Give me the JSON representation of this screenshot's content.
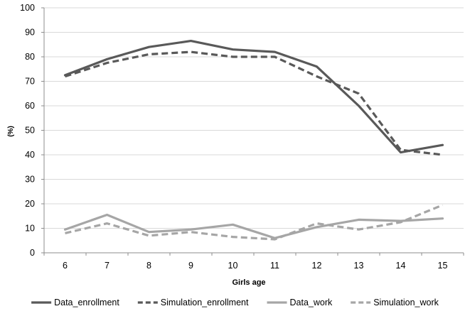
{
  "chart_data": {
    "type": "line",
    "title": "",
    "xlabel": "Girls age",
    "ylabel": "(%)",
    "categories": [
      "6",
      "7",
      "8",
      "9",
      "10",
      "11",
      "12",
      "13",
      "14",
      "15"
    ],
    "ylim": [
      0,
      100
    ],
    "yticks": [
      "0",
      "10",
      "20",
      "30",
      "40",
      "50",
      "60",
      "70",
      "80",
      "90",
      "100"
    ],
    "grid": "horizontal",
    "legend_position": "bottom",
    "series": [
      {
        "name": "Data_enrollment",
        "values": [
          72.5,
          79,
          84,
          86.5,
          83,
          82,
          76,
          60,
          41,
          44
        ],
        "color": "#595959",
        "dashed": false
      },
      {
        "name": "Simulation_enrollment",
        "values": [
          72,
          77.5,
          81,
          82,
          80,
          80,
          72,
          65,
          42,
          40
        ],
        "color": "#595959",
        "dashed": true
      },
      {
        "name": "Data_work",
        "values": [
          9.5,
          15.5,
          8.5,
          9.5,
          11.5,
          6,
          10.5,
          13.5,
          13,
          14
        ],
        "color": "#a6a6a6",
        "dashed": false
      },
      {
        "name": "Simulation_work",
        "values": [
          8,
          12,
          7,
          8.5,
          6.5,
          5.5,
          12,
          9.5,
          12.5,
          19.5
        ],
        "color": "#a6a6a6",
        "dashed": true
      }
    ]
  }
}
